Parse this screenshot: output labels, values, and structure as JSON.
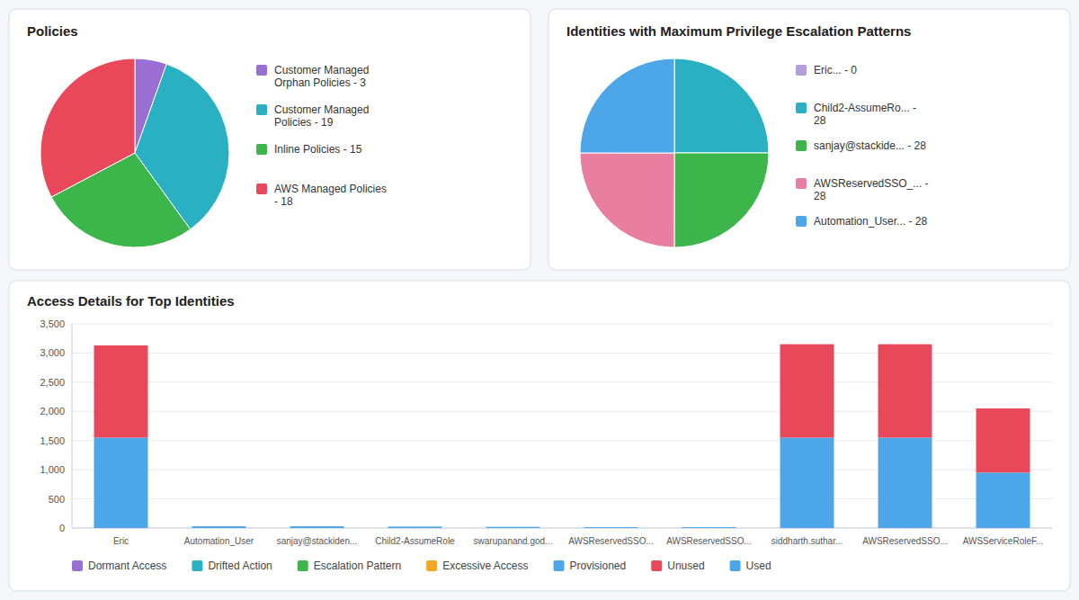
{
  "chart_data": [
    {
      "type": "pie",
      "title": "Policies",
      "categories": [
        "Customer Managed\nOrphan Policies - 3",
        "Customer Managed\nPolicies - 19",
        "Inline Policies - 15",
        "AWS Managed Policies\n- 18"
      ],
      "values": [
        3,
        19,
        15,
        18
      ],
      "colors": [
        "#9b6ed4",
        "#29b0c3",
        "#3cb54a",
        "#e8485a"
      ]
    },
    {
      "type": "pie",
      "title": "Identities with Maximum Privilege Escalation Patterns",
      "categories": [
        "Eric... - 0",
        "Child2-AssumeRo... -\n28",
        "sanjay@stackide... - 28",
        "AWSReservedSSO_... -\n28",
        "Automation_User... - 28"
      ],
      "values": [
        0.01,
        28,
        28,
        28,
        28
      ],
      "colors": [
        "#b39ddb",
        "#29b0c3",
        "#3cb54a",
        "#e87fa0",
        "#4da6e8"
      ]
    },
    {
      "type": "bar",
      "title": "Access Details for Top Identities",
      "stacked": true,
      "grid": true,
      "categories": [
        "Eric",
        "Automation_User",
        "sanjay@stackiden...",
        "Child2-AssumeRole",
        "swarupanand.god...",
        "AWSReservedSSO...",
        "AWSReservedSSO...",
        "siddharth.suthar...",
        "AWSReservedSSO...",
        "AWSServiceRoleF..."
      ],
      "series": [
        {
          "name": "Dormant Access",
          "color": "#9b6ed4",
          "values": [
            null,
            null,
            null,
            null,
            null,
            null,
            null,
            null,
            null,
            null
          ]
        },
        {
          "name": "Drifted Action",
          "color": "#29b0c3",
          "values": [
            null,
            null,
            null,
            null,
            null,
            null,
            null,
            null,
            null,
            null
          ]
        },
        {
          "name": "Escalation Pattern",
          "color": "#3cb54a",
          "values": [
            null,
            null,
            null,
            null,
            null,
            null,
            null,
            null,
            null,
            null
          ]
        },
        {
          "name": "Excessive Access",
          "color": "#f5a623",
          "values": [
            null,
            null,
            null,
            null,
            null,
            null,
            null,
            null,
            null,
            null
          ]
        },
        {
          "name": "Provisioned",
          "color": "#4da6e8",
          "values": [
            1550,
            30,
            30,
            25,
            20,
            15,
            15,
            1550,
            1550,
            950
          ]
        },
        {
          "name": "Unused",
          "color": "#e8485a",
          "values": [
            1580,
            0,
            0,
            0,
            0,
            0,
            0,
            1600,
            1600,
            1100
          ]
        },
        {
          "name": "Used",
          "color": "#4da6e8",
          "values": [
            null,
            null,
            null,
            null,
            null,
            null,
            null,
            null,
            null,
            null
          ]
        }
      ],
      "ylim": [
        0,
        3500
      ],
      "yticks": [
        0,
        500,
        {
          "value": 1000,
          "label": "1,000"
        },
        {
          "value": 1500,
          "label": "1,500"
        },
        {
          "value": 2000,
          "label": "2,000"
        },
        {
          "value": 2500,
          "label": "2,500"
        },
        {
          "value": 3000,
          "label": "3,000"
        },
        {
          "value": 3500,
          "label": "3,500"
        }
      ]
    }
  ]
}
